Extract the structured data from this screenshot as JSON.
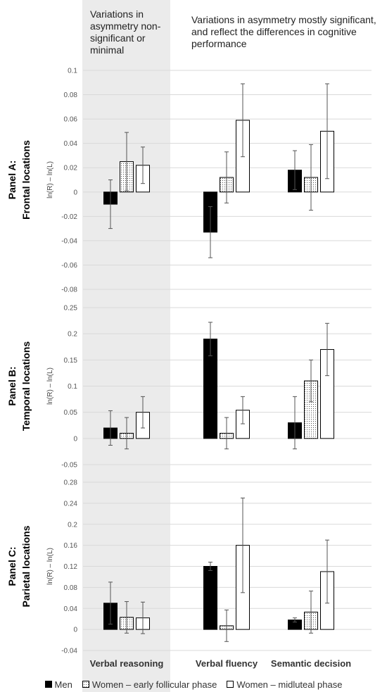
{
  "header": {
    "left": "Variations in asymmetry non-significant or minimal",
    "right": "Variations in asymmetry mostly significant, and reflect the differences in cognitive  performance"
  },
  "colors": {
    "shade": "#ebebeb",
    "bar_stroke": "#000000",
    "dots": "#555555"
  },
  "chart_data": [
    {
      "type": "bar",
      "panel_label": "Panel A:",
      "panel_sublabel": "Frontal locations",
      "ylabel": "ln(R) – ln(L)",
      "ylim": [
        -0.08,
        0.1
      ],
      "yticks": [
        -0.08,
        -0.06,
        -0.04,
        -0.02,
        0,
        0.02,
        0.04,
        0.06,
        0.08,
        0.1
      ],
      "tick_labels": [
        "-0.08",
        "-0.06",
        "-0.04",
        "-0.02",
        "0",
        "0.02",
        "0.04",
        "0.06",
        "0.08",
        "0.1"
      ],
      "categories": [
        "Verbal reasoning",
        "Verbal fluency",
        "Semantic decision"
      ],
      "series": [
        {
          "name": "Men",
          "values": [
            -0.01,
            -0.033,
            0.018
          ],
          "err": [
            0.02,
            0.021,
            0.016
          ]
        },
        {
          "name": "Women – early follicular phase",
          "values": [
            0.025,
            0.012,
            0.012
          ],
          "err": [
            0.024,
            0.021,
            0.027
          ]
        },
        {
          "name": "Women – midluteal phase",
          "values": [
            0.022,
            0.059,
            0.05
          ],
          "err": [
            0.015,
            0.03,
            0.039
          ]
        }
      ]
    },
    {
      "type": "bar",
      "panel_label": "Panel B:",
      "panel_sublabel": "Temporal locations",
      "ylabel": "ln(R) – ln(L)",
      "ylim": [
        -0.05,
        0.25
      ],
      "yticks": [
        -0.05,
        0,
        0.05,
        0.1,
        0.15,
        0.2,
        0.25
      ],
      "tick_labels": [
        "-0.05",
        "0",
        "0.05",
        "0.1",
        "0.15",
        "0.2",
        "0.25"
      ],
      "categories": [
        "Verbal reasoning",
        "Verbal fluency",
        "Semantic decision"
      ],
      "series": [
        {
          "name": "Men",
          "values": [
            0.02,
            0.19,
            0.03
          ],
          "err": [
            0.033,
            0.032,
            0.05
          ]
        },
        {
          "name": "Women – early follicular phase",
          "values": [
            0.01,
            0.01,
            0.11
          ],
          "err": [
            0.03,
            0.03,
            0.04
          ]
        },
        {
          "name": "Women – midluteal phase",
          "values": [
            0.05,
            0.054,
            0.17
          ],
          "err": [
            0.03,
            0.026,
            0.05
          ]
        }
      ]
    },
    {
      "type": "bar",
      "panel_label": "Panel C:",
      "panel_sublabel": "Parietal locations",
      "ylabel": "ln(R) – ln(L)",
      "ylim": [
        -0.04,
        0.28
      ],
      "yticks": [
        -0.04,
        0,
        0.04,
        0.08,
        0.12,
        0.16,
        0.2,
        0.24,
        0.28
      ],
      "tick_labels": [
        "-0.04",
        "0",
        "0.04",
        "0.08",
        "0.12",
        "0.16",
        "0.2",
        "0.24",
        "0.28"
      ],
      "categories": [
        "Verbal reasoning",
        "Verbal fluency",
        "Semantic decision"
      ],
      "series": [
        {
          "name": "Men",
          "values": [
            0.05,
            0.12,
            0.018
          ],
          "err": [
            0.04,
            0.008,
            0.004
          ]
        },
        {
          "name": "Women – early follicular phase",
          "values": [
            0.023,
            0.007,
            0.033
          ],
          "err": [
            0.03,
            0.03,
            0.04
          ]
        },
        {
          "name": "Women – midluteal phase",
          "values": [
            0.022,
            0.16,
            0.11
          ],
          "err": [
            0.03,
            0.09,
            0.06
          ]
        }
      ]
    }
  ],
  "legend": {
    "items": [
      {
        "label": "Men",
        "fill": "black"
      },
      {
        "label": "Women – early follicular phase",
        "fill": "dots"
      },
      {
        "label": "Women – midluteal phase",
        "fill": "white"
      }
    ]
  }
}
